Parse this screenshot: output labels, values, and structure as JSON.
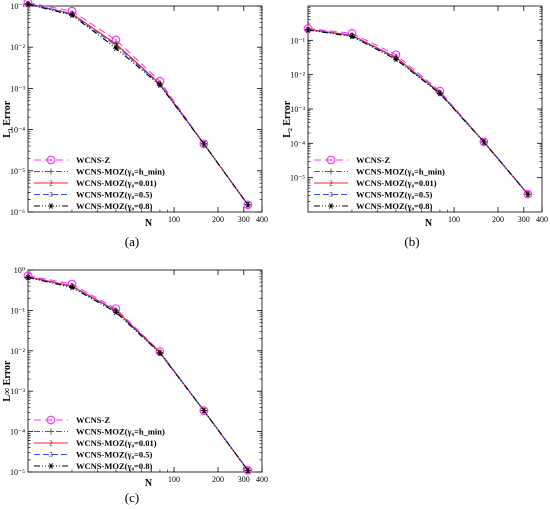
{
  "figure": {
    "labels": [
      "(a)",
      "(b)",
      "(c)"
    ]
  },
  "chart_data": [
    {
      "type": "line",
      "xscale": "log",
      "yscale": "log",
      "xlabel": "N",
      "ylabel": "L₁ Error",
      "xlim": [
        10,
        400
      ],
      "ylim": [
        1e-06,
        0.1
      ],
      "x_ticks": [
        "100",
        "200",
        "300",
        "400"
      ],
      "y_ticks": [
        "10⁻⁶",
        "10⁻⁵",
        "10⁻⁴",
        "10⁻³",
        "10⁻²",
        "10⁻¹"
      ],
      "x": [
        10,
        20,
        40,
        80,
        160,
        320
      ],
      "series": [
        {
          "name": "WCNS-Z",
          "values": [
            0.12,
            0.075,
            0.015,
            0.0015,
            4.5e-05,
            1.5e-06
          ]
        },
        {
          "name": "WCNS-MOZ(γ₀=h_min)",
          "values": [
            0.115,
            0.065,
            0.012,
            0.0013,
            4.5e-05,
            1.5e-06
          ]
        },
        {
          "name": "WCNS-MOZ(γ₀=0.01)",
          "values": [
            0.115,
            0.065,
            0.012,
            0.0013,
            4.5e-05,
            1.5e-06
          ]
        },
        {
          "name": "WCNS-MOZ(γ₀=0.5)",
          "values": [
            0.115,
            0.062,
            0.011,
            0.00125,
            4.5e-05,
            1.5e-06
          ]
        },
        {
          "name": "WCNS-MOZ(γ₀=0.8)",
          "values": [
            0.11,
            0.06,
            0.0095,
            0.0012,
            4.5e-05,
            1.5e-06
          ]
        }
      ]
    },
    {
      "type": "line",
      "xscale": "log",
      "yscale": "log",
      "xlabel": "N",
      "ylabel": "L₂ Error",
      "xlim": [
        10,
        400
      ],
      "ylim": [
        1e-06,
        1
      ],
      "x_ticks": [
        "100",
        "200",
        "300",
        "400"
      ],
      "y_ticks": [
        "10⁻⁵",
        "10⁻⁴",
        "10⁻³",
        "10⁻²",
        "10⁻¹"
      ],
      "x": [
        10,
        20,
        40,
        80,
        160,
        320
      ],
      "series": [
        {
          "name": "WCNS-Z",
          "values": [
            0.22,
            0.16,
            0.038,
            0.0033,
            0.00011,
            3.3e-06
          ]
        },
        {
          "name": "WCNS-MOZ(γ₀=h_min)",
          "values": [
            0.21,
            0.14,
            0.032,
            0.003,
            0.00011,
            3.3e-06
          ]
        },
        {
          "name": "WCNS-MOZ(γ₀=0.01)",
          "values": [
            0.21,
            0.14,
            0.032,
            0.003,
            0.00011,
            3.3e-06
          ]
        },
        {
          "name": "WCNS-MOZ(γ₀=0.5)",
          "values": [
            0.21,
            0.135,
            0.03,
            0.0029,
            0.00011,
            3.3e-06
          ]
        },
        {
          "name": "WCNS-MOZ(γ₀=0.8)",
          "values": [
            0.2,
            0.13,
            0.028,
            0.0028,
            0.00011,
            3.3e-06
          ]
        }
      ]
    },
    {
      "type": "line",
      "xscale": "log",
      "yscale": "log",
      "xlabel": "N",
      "ylabel": "L∞ Error",
      "xlim": [
        10,
        400
      ],
      "ylim": [
        1e-05,
        1
      ],
      "x_ticks": [
        "100",
        "200",
        "300",
        "400"
      ],
      "y_ticks": [
        "10⁻⁵",
        "10⁻⁴",
        "10⁻³",
        "10⁻²",
        "10⁻¹",
        "10⁰"
      ],
      "x": [
        10,
        20,
        40,
        80,
        160,
        320
      ],
      "series": [
        {
          "name": "WCNS-Z",
          "values": [
            0.72,
            0.45,
            0.11,
            0.0095,
            0.00033,
            1.1e-05
          ]
        },
        {
          "name": "WCNS-MOZ(γ₀=h_min)",
          "values": [
            0.68,
            0.4,
            0.1,
            0.0092,
            0.00033,
            1.1e-05
          ]
        },
        {
          "name": "WCNS-MOZ(γ₀=0.01)",
          "values": [
            0.68,
            0.4,
            0.1,
            0.0092,
            0.00033,
            1.1e-05
          ]
        },
        {
          "name": "WCNS-MOZ(γ₀=0.5)",
          "values": [
            0.67,
            0.39,
            0.095,
            0.009,
            0.00033,
            1.1e-05
          ]
        },
        {
          "name": "WCNS-MOZ(γ₀=0.8)",
          "values": [
            0.65,
            0.37,
            0.09,
            0.0088,
            0.00033,
            1.1e-05
          ]
        }
      ]
    }
  ],
  "series_style": [
    {
      "color": "#ff33ff",
      "dash": "7,4",
      "marker": "circle-open",
      "legend_symbol": "◯"
    },
    {
      "color": "#556b2f",
      "dash": "6,2,1,2",
      "marker": "plus",
      "legend_symbol": "+"
    },
    {
      "color": "#ff2222",
      "dash": "",
      "marker": "two",
      "legend_symbol": "2"
    },
    {
      "color": "#3355ff",
      "dash": "6,3",
      "marker": "three",
      "legend_symbol": "3"
    },
    {
      "color": "#000000",
      "dash": "6,2,1,2,1,2",
      "marker": "star",
      "legend_symbol": "✶"
    }
  ]
}
